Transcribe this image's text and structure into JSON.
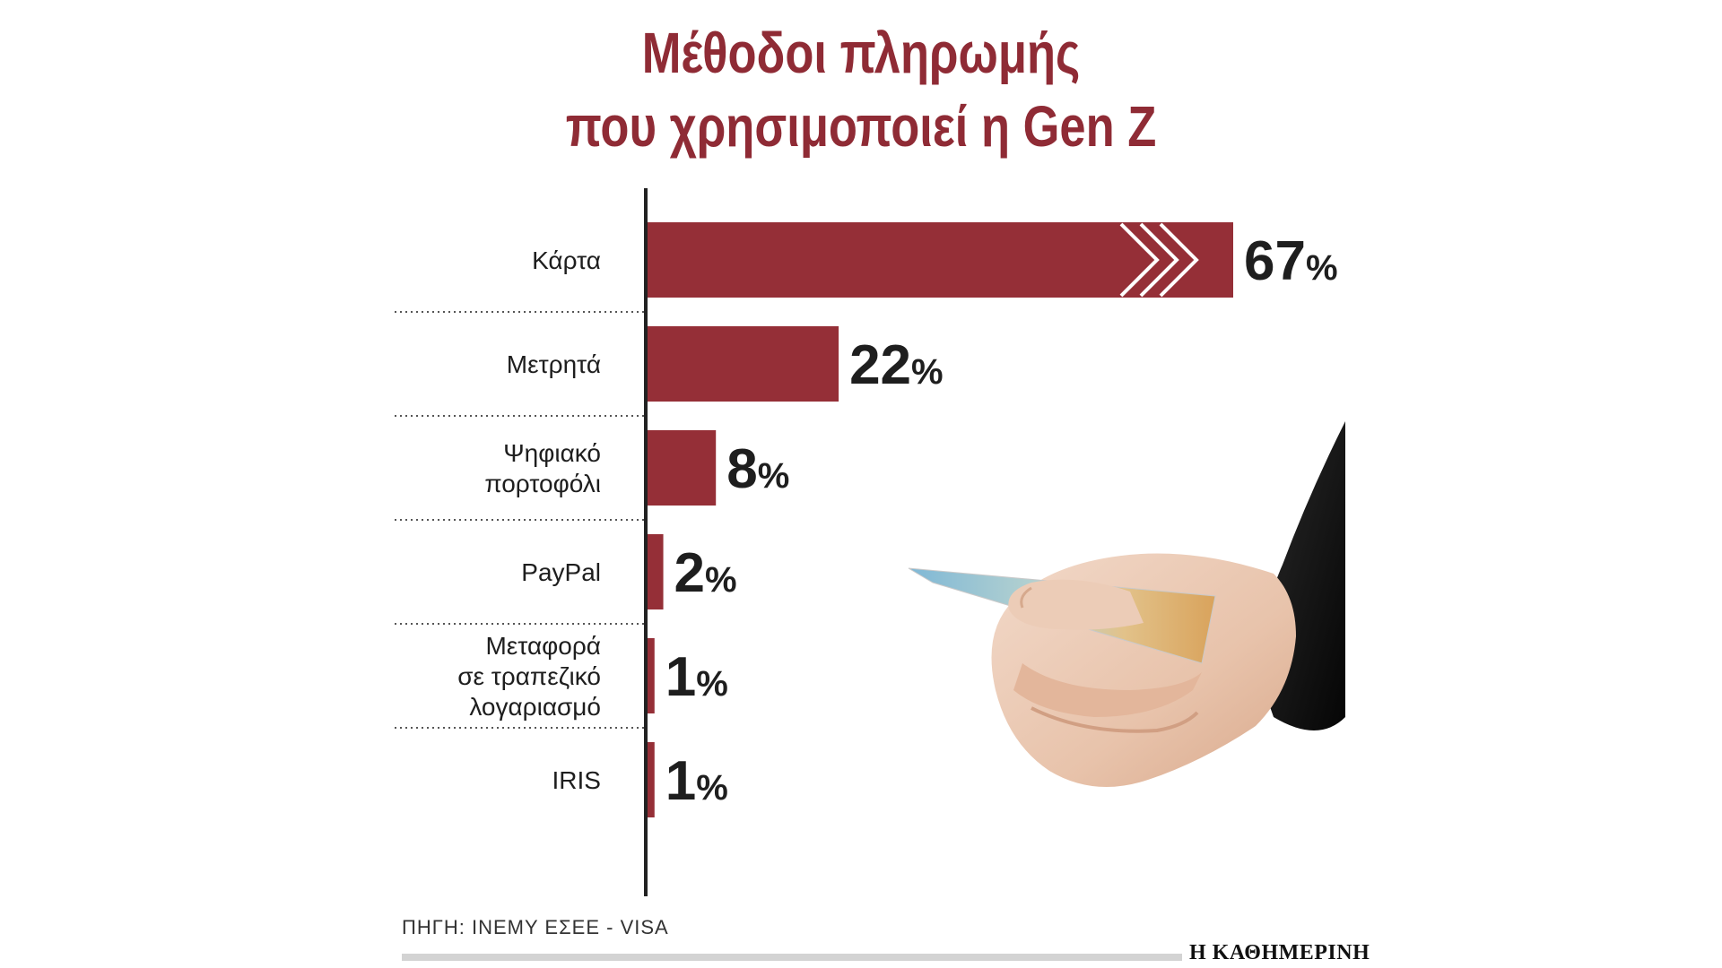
{
  "header": {
    "title_line1": "Μέθοδοι πληρωμής",
    "title_line2": "που χρησιμοποιεί η Gen Z"
  },
  "colors": {
    "bar": "#952f37",
    "title": "#8f2b35",
    "text": "#1e1e1e"
  },
  "chart_data": {
    "type": "bar",
    "orientation": "horizontal",
    "title": "Μέθοδοι πληρωμής που χρησιμοποιεί η Gen Z",
    "categories": [
      [
        "Κάρτα"
      ],
      [
        "Μετρητά"
      ],
      [
        "Ψηφιακό",
        "πορτοφόλι"
      ],
      [
        "PayPal"
      ],
      [
        "Μεταφορά",
        "σε τραπεζικό",
        "λογαριασμό"
      ],
      [
        "IRIS"
      ]
    ],
    "values": [
      67,
      22,
      8,
      2,
      1,
      1
    ],
    "value_labels": [
      "67%",
      "22%",
      "8%",
      "2%",
      "1%",
      "1%"
    ],
    "unit": "%",
    "xlim": [
      0,
      67
    ],
    "grid": false,
    "legend": "none"
  },
  "footer": {
    "source": "ΠΗΓΗ: ΙΝΕΜΥ ΕΣΕΕ - VISA",
    "brand": "Η ΚΑΘΗΜΕΡΙΝΗ"
  },
  "illustration": {
    "icon": "hand-holding-credit-card"
  }
}
